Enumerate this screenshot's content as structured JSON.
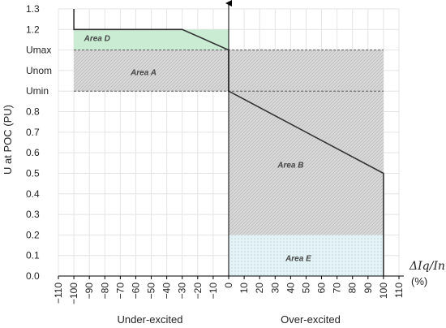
{
  "chart_data": {
    "type": "area",
    "ylabel": "U at POC (PU)",
    "x_label_math": "ΔIq/In",
    "x_unit": "(%)",
    "x_ticks": [
      -110,
      -100,
      -90,
      -80,
      -70,
      -60,
      -50,
      -40,
      -30,
      -20,
      -10,
      0,
      10,
      20,
      30,
      40,
      50,
      60,
      70,
      80,
      90,
      100,
      110
    ],
    "xlim": [
      -110,
      110
    ],
    "ylim": [
      0,
      1.3
    ],
    "y_ticks": [
      {
        "value": 0.0,
        "label": "0.0"
      },
      {
        "value": 0.1,
        "label": "0.1"
      },
      {
        "value": 0.2,
        "label": "0.2"
      },
      {
        "value": 0.3,
        "label": "0.3"
      },
      {
        "value": 0.4,
        "label": "0.4"
      },
      {
        "value": 0.5,
        "label": "0.5"
      },
      {
        "value": 0.6,
        "label": "0.6"
      },
      {
        "value": 0.7,
        "label": "0.7"
      },
      {
        "value": 0.8,
        "label": "0.8"
      },
      {
        "value": 0.9,
        "label": "Umin"
      },
      {
        "value": 1.0,
        "label": "Unom"
      },
      {
        "value": 1.1,
        "label": "Umax"
      },
      {
        "value": 1.2,
        "label": "1.2"
      },
      {
        "value": 1.3,
        "label": "1.3"
      }
    ],
    "grid": true,
    "regions": [
      {
        "name": "Area D",
        "x": [
          -100,
          0
        ],
        "y": [
          1.1,
          1.2
        ],
        "color": "#c9ecd3",
        "hatch": false
      },
      {
        "name": "Area A",
        "x": [
          -100,
          100
        ],
        "y": [
          0.9,
          1.1
        ],
        "color": "#d6d6d6",
        "hatch": true
      },
      {
        "name": "Area B",
        "x": [
          0,
          100
        ],
        "y": [
          0.2,
          0.9
        ],
        "color": "#d6d6d6",
        "hatch": true
      },
      {
        "name": "Area E",
        "x": [
          0,
          100
        ],
        "y": [
          0,
          0.2
        ],
        "color": "#e3f1f5",
        "hatch": false
      }
    ],
    "region_labels": [
      {
        "text": "Area D",
        "x": -85,
        "y": 1.155
      },
      {
        "text": "Area A",
        "x": -55,
        "y": 0.99
      },
      {
        "text": "Area B",
        "x": 40,
        "y": 0.54
      },
      {
        "text": "Area E",
        "x": 45,
        "y": 0.085
      }
    ],
    "boundary_line": [
      {
        "x": -100,
        "y": 1.3
      },
      {
        "x": -100,
        "y": 1.2
      },
      {
        "x": -30,
        "y": 1.2
      },
      {
        "x": 0,
        "y": 1.1
      },
      {
        "x": 0,
        "y": 0.9
      },
      {
        "x": 100,
        "y": 0.5
      },
      {
        "x": 100,
        "y": 0
      }
    ],
    "reference_lines": [
      1.1,
      0.9
    ],
    "side_labels": {
      "left": "Under-excited",
      "right": "Over-excited"
    }
  }
}
